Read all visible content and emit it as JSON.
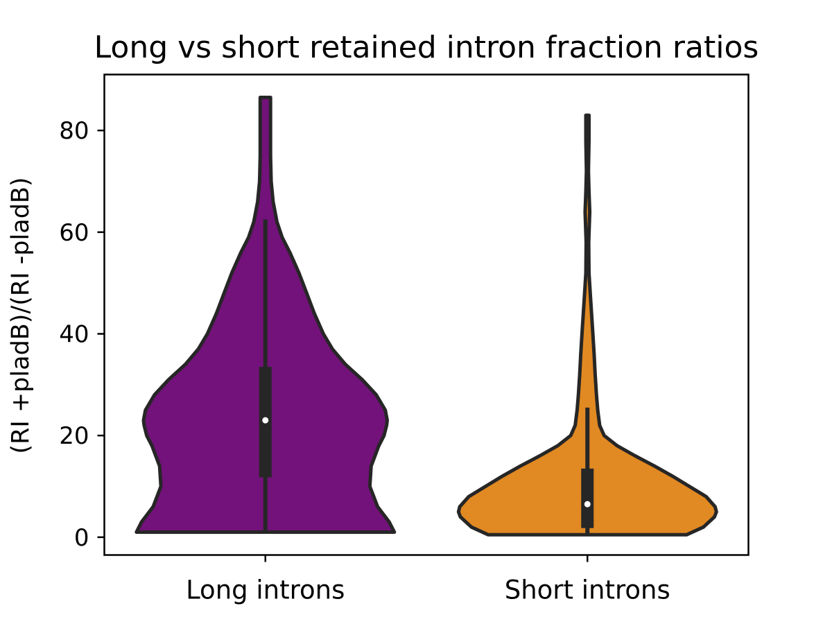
{
  "chart_data": {
    "type": "violin",
    "title": "Long vs short retained intron fraction ratios",
    "xlabel": "",
    "ylabel": "(RI +pladB)/(RI -pladB)",
    "ylim": [
      -3.5,
      91
    ],
    "yticks": [
      0,
      20,
      40,
      60,
      80
    ],
    "grid": false,
    "categories": [
      "Long introns",
      "Short introns"
    ],
    "series": [
      {
        "category": "Long introns",
        "color": "#73127a",
        "min": 1,
        "q1": 11.8,
        "median": 23,
        "q3": 33.5,
        "whisker_low": 1,
        "whisker_high": 62.5,
        "max": 86.5,
        "density": [
          [
            1,
            1.0
          ],
          [
            3,
            0.96
          ],
          [
            6,
            0.87
          ],
          [
            10,
            0.81
          ],
          [
            14,
            0.82
          ],
          [
            18,
            0.88
          ],
          [
            20,
            0.92
          ],
          [
            22,
            0.94
          ],
          [
            23,
            0.945
          ],
          [
            25,
            0.93
          ],
          [
            28,
            0.86
          ],
          [
            31,
            0.75
          ],
          [
            34,
            0.62
          ],
          [
            37,
            0.52
          ],
          [
            40,
            0.45
          ],
          [
            44,
            0.38
          ],
          [
            48,
            0.32
          ],
          [
            52,
            0.26
          ],
          [
            56,
            0.19
          ],
          [
            59,
            0.13
          ],
          [
            62,
            0.09
          ],
          [
            66,
            0.06
          ],
          [
            70,
            0.045
          ],
          [
            75,
            0.04
          ],
          [
            80,
            0.04
          ],
          [
            84,
            0.04
          ],
          [
            86.5,
            0.04
          ]
        ]
      },
      {
        "category": "Short introns",
        "color": "#e18922",
        "min": 0.5,
        "q1": 1.8,
        "median": 6.5,
        "q3": 13.5,
        "whisker_low": 0.5,
        "whisker_high": 25.5,
        "max": 83,
        "density": [
          [
            0.5,
            0.77
          ],
          [
            2,
            0.9
          ],
          [
            4,
            0.985
          ],
          [
            5,
            1.0
          ],
          [
            6,
            0.99
          ],
          [
            8,
            0.92
          ],
          [
            10,
            0.79
          ],
          [
            12,
            0.66
          ],
          [
            14,
            0.52
          ],
          [
            16,
            0.37
          ],
          [
            18,
            0.23
          ],
          [
            20,
            0.13
          ],
          [
            22,
            0.095
          ],
          [
            25,
            0.08
          ],
          [
            28,
            0.07
          ],
          [
            32,
            0.06
          ],
          [
            36,
            0.052
          ],
          [
            40,
            0.042
          ],
          [
            44,
            0.032
          ],
          [
            48,
            0.022
          ],
          [
            52,
            0.012
          ],
          [
            58,
            0.01
          ],
          [
            64,
            0.018
          ],
          [
            68,
            0.012
          ],
          [
            72,
            0.008
          ],
          [
            78,
            0.012
          ],
          [
            83,
            0.012
          ]
        ]
      }
    ]
  }
}
